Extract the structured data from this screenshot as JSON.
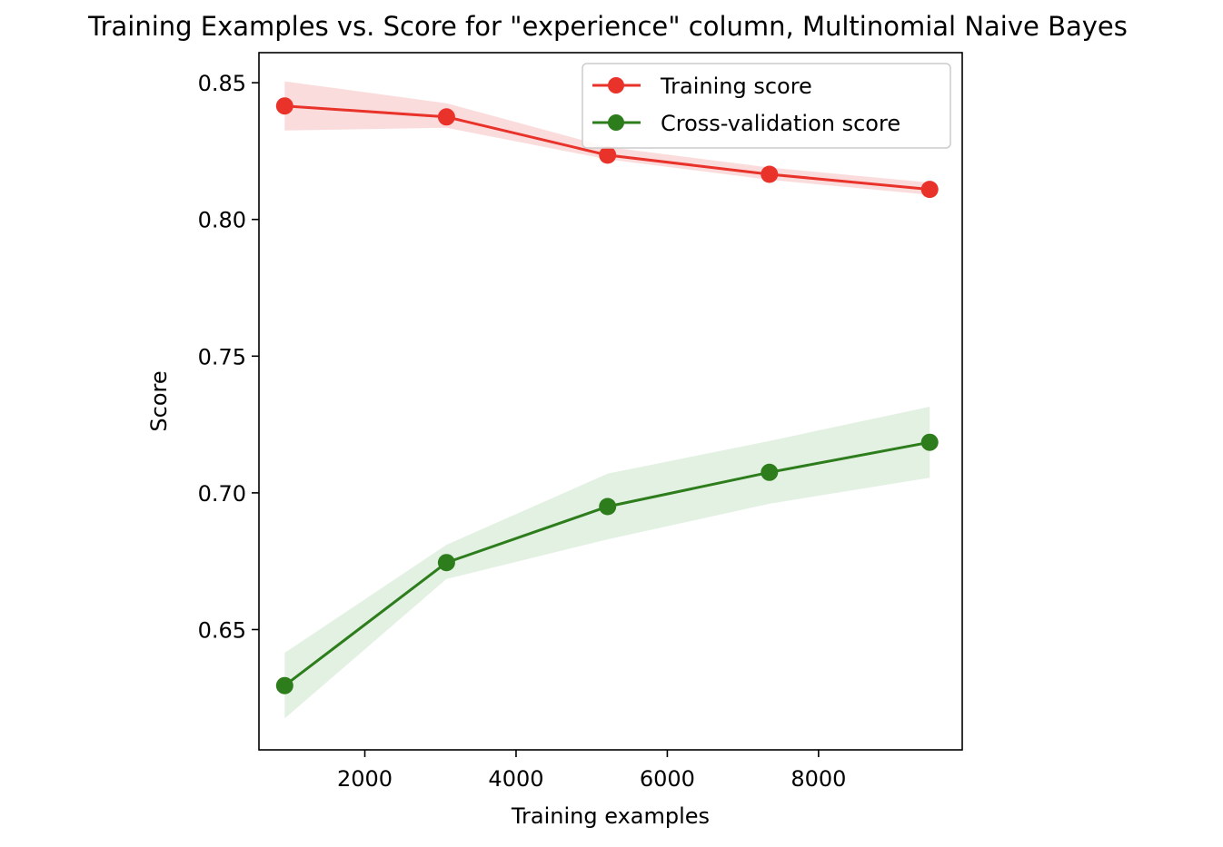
{
  "chart_data": {
    "type": "line",
    "title": "Training Examples vs. Score for \"experience\" column, Multinomial Naive Bayes",
    "xlabel": "Training examples",
    "ylabel": "Score",
    "xlim": [
      600,
      9900
    ],
    "ylim": [
      0.606,
      0.861
    ],
    "xticks": [
      2000,
      4000,
      6000,
      8000
    ],
    "xtick_labels": [
      "2000",
      "4000",
      "6000",
      "8000"
    ],
    "yticks": [
      0.65,
      0.7,
      0.75,
      0.8,
      0.85
    ],
    "ytick_labels": [
      "0.65",
      "0.70",
      "0.75",
      "0.80",
      "0.85"
    ],
    "x": [
      940,
      3080,
      5210,
      7350,
      9470
    ],
    "grid": false,
    "legend": "top-right",
    "series": [
      {
        "name": "Training score",
        "color": "#e8322a",
        "band_color": "#f08080",
        "values": [
          0.8415,
          0.8375,
          0.8235,
          0.8165,
          0.811
        ],
        "lower": [
          0.8325,
          0.8335,
          0.822,
          0.8145,
          0.809
        ],
        "upper": [
          0.8505,
          0.8425,
          0.8265,
          0.819,
          0.8135
        ]
      },
      {
        "name": "Cross-validation score",
        "color": "#2e7d1d",
        "band_color": "#9ccc9c",
        "values": [
          0.6295,
          0.6745,
          0.695,
          0.7075,
          0.7185
        ],
        "lower": [
          0.6175,
          0.6685,
          0.683,
          0.696,
          0.7055
        ],
        "upper": [
          0.6415,
          0.681,
          0.707,
          0.719,
          0.7315
        ]
      }
    ]
  }
}
